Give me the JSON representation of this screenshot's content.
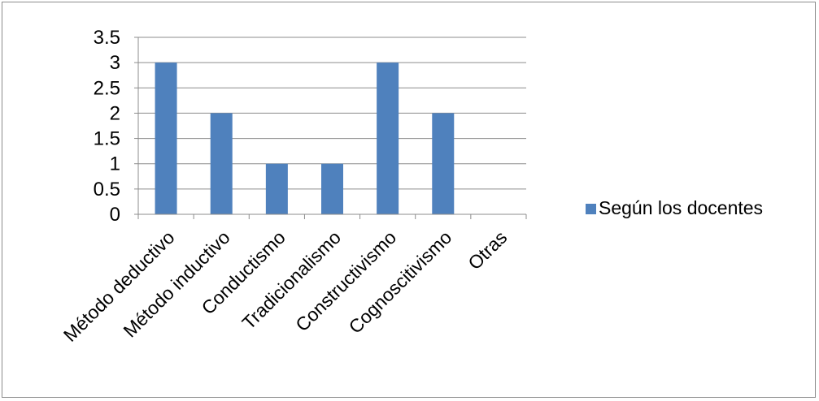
{
  "chart_data": {
    "type": "bar",
    "categories": [
      "Método deductivo",
      "Método inductivo",
      "Conductismo",
      "Tradicionalismo",
      "Constructivismo",
      "Cognoscitivismo",
      "Otras"
    ],
    "series": [
      {
        "name": "Según los docentes",
        "values": [
          3,
          2,
          1,
          1,
          3,
          2,
          0
        ],
        "color": "#4f81bd"
      }
    ],
    "yticks": [
      "0",
      "0.5",
      "1",
      "1.5",
      "2",
      "2.5",
      "3",
      "3.5"
    ],
    "ylim": [
      0,
      3.5
    ],
    "grid": true,
    "legend_position": "right",
    "title": "",
    "xlabel": "",
    "ylabel": ""
  }
}
